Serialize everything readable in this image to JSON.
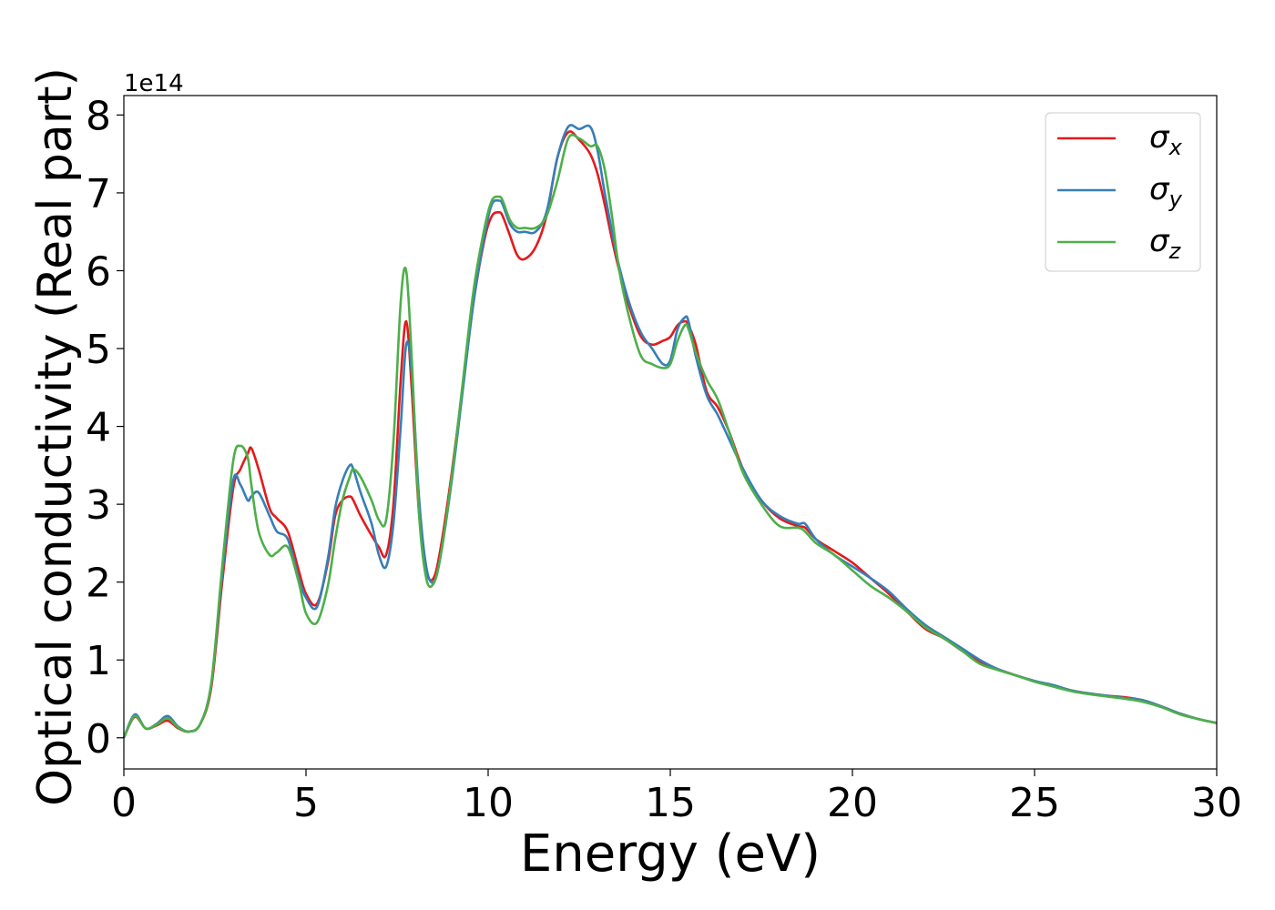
{
  "chart_data": {
    "type": "line",
    "xlabel": "Energy (eV)",
    "ylabel": "Optical conductivity (Real part)",
    "y_offset_label": "1e14",
    "xlim": [
      0,
      30
    ],
    "ylim": [
      -0.4,
      8.25
    ],
    "xticks": [
      0,
      5,
      10,
      15,
      20,
      25,
      30
    ],
    "yticks": [
      0,
      1,
      2,
      3,
      4,
      5,
      6,
      7,
      8
    ],
    "grid": false,
    "legend_position": "top-right",
    "x": [
      0,
      0.3,
      0.6,
      0.9,
      1.2,
      1.5,
      1.8,
      2.1,
      2.4,
      2.7,
      3.0,
      3.2,
      3.4,
      3.5,
      3.7,
      4.0,
      4.2,
      4.5,
      4.8,
      5.0,
      5.3,
      5.6,
      5.8,
      6.0,
      6.2,
      6.3,
      6.5,
      6.8,
      7.0,
      7.2,
      7.4,
      7.6,
      7.75,
      7.9,
      8.1,
      8.3,
      8.5,
      8.7,
      9.0,
      9.3,
      9.6,
      9.9,
      10.1,
      10.3,
      10.4,
      10.6,
      10.8,
      11.0,
      11.3,
      11.6,
      11.9,
      12.2,
      12.5,
      12.8,
      13.0,
      13.2,
      13.4,
      13.6,
      13.9,
      14.2,
      14.5,
      14.8,
      15.0,
      15.2,
      15.4,
      15.5,
      15.7,
      16.0,
      16.3,
      16.6,
      17.0,
      17.5,
      18.0,
      18.5,
      18.7,
      19.0,
      19.5,
      20.0,
      20.5,
      21.0,
      21.5,
      22.0,
      22.5,
      23.0,
      23.5,
      24.0,
      24.5,
      25.0,
      25.5,
      26.0,
      26.5,
      27.0,
      27.5,
      28.0,
      28.5,
      29.0,
      29.5,
      30.0
    ],
    "series": [
      {
        "name": "σ_x",
        "label_base": "σ",
        "label_sub": "x",
        "color": "#e41a1c",
        "values": [
          0,
          0.27,
          0.12,
          0.16,
          0.22,
          0.12,
          0.08,
          0.18,
          0.65,
          2.0,
          3.2,
          3.45,
          3.65,
          3.72,
          3.45,
          2.95,
          2.82,
          2.65,
          2.15,
          1.85,
          1.72,
          2.25,
          2.85,
          3.05,
          3.1,
          3.05,
          2.85,
          2.6,
          2.45,
          2.35,
          3.0,
          4.6,
          5.35,
          4.5,
          2.9,
          2.15,
          2.05,
          2.45,
          3.4,
          4.5,
          5.6,
          6.4,
          6.7,
          6.75,
          6.7,
          6.45,
          6.2,
          6.15,
          6.3,
          6.7,
          7.45,
          7.78,
          7.68,
          7.5,
          7.25,
          6.85,
          6.4,
          6.0,
          5.5,
          5.15,
          5.05,
          5.1,
          5.15,
          5.3,
          5.35,
          5.3,
          5.05,
          4.45,
          4.25,
          3.95,
          3.45,
          3.05,
          2.82,
          2.72,
          2.7,
          2.55,
          2.4,
          2.25,
          2.05,
          1.85,
          1.62,
          1.4,
          1.28,
          1.12,
          0.98,
          0.88,
          0.8,
          0.73,
          0.67,
          0.61,
          0.57,
          0.54,
          0.52,
          0.48,
          0.4,
          0.31,
          0.24,
          0.19
        ]
      },
      {
        "name": "σ_y",
        "label_base": "σ",
        "label_sub": "y",
        "color": "#377eb8",
        "values": [
          0,
          0.3,
          0.12,
          0.18,
          0.28,
          0.14,
          0.08,
          0.18,
          0.7,
          2.1,
          3.3,
          3.25,
          3.05,
          3.1,
          3.15,
          2.85,
          2.65,
          2.55,
          2.05,
          1.8,
          1.68,
          2.3,
          2.95,
          3.3,
          3.5,
          3.45,
          3.15,
          2.75,
          2.35,
          2.2,
          2.75,
          4.0,
          5.05,
          4.7,
          3.1,
          2.2,
          2.0,
          2.35,
          3.3,
          4.45,
          5.6,
          6.45,
          6.85,
          6.9,
          6.85,
          6.6,
          6.5,
          6.5,
          6.5,
          6.75,
          7.45,
          7.85,
          7.82,
          7.85,
          7.55,
          7.0,
          6.5,
          6.05,
          5.55,
          5.2,
          5.0,
          4.8,
          4.85,
          5.25,
          5.4,
          5.35,
          4.9,
          4.4,
          4.15,
          3.85,
          3.45,
          3.05,
          2.85,
          2.75,
          2.75,
          2.55,
          2.35,
          2.2,
          2.05,
          1.88,
          1.65,
          1.45,
          1.3,
          1.15,
          1.0,
          0.88,
          0.8,
          0.73,
          0.68,
          0.61,
          0.57,
          0.54,
          0.51,
          0.48,
          0.4,
          0.31,
          0.24,
          0.19
        ]
      },
      {
        "name": "σ_z",
        "label_base": "σ",
        "label_sub": "z",
        "color": "#4daf4a",
        "values": [
          0,
          0.28,
          0.12,
          0.17,
          0.25,
          0.13,
          0.08,
          0.18,
          0.7,
          2.2,
          3.55,
          3.75,
          3.6,
          3.25,
          2.65,
          2.35,
          2.38,
          2.45,
          2.0,
          1.6,
          1.48,
          1.95,
          2.55,
          3.05,
          3.35,
          3.45,
          3.35,
          3.05,
          2.8,
          2.8,
          3.8,
          5.6,
          6.0,
          4.9,
          2.9,
          2.05,
          1.98,
          2.35,
          3.35,
          4.55,
          5.75,
          6.55,
          6.9,
          6.95,
          6.9,
          6.65,
          6.55,
          6.55,
          6.55,
          6.7,
          7.15,
          7.7,
          7.7,
          7.6,
          7.6,
          7.3,
          6.7,
          6.0,
          5.35,
          4.9,
          4.8,
          4.75,
          4.8,
          5.1,
          5.3,
          5.25,
          4.95,
          4.6,
          4.35,
          3.95,
          3.4,
          3.0,
          2.72,
          2.7,
          2.65,
          2.5,
          2.35,
          2.15,
          1.95,
          1.8,
          1.62,
          1.42,
          1.28,
          1.12,
          0.95,
          0.87,
          0.8,
          0.72,
          0.66,
          0.6,
          0.56,
          0.53,
          0.5,
          0.46,
          0.39,
          0.3,
          0.24,
          0.19
        ]
      }
    ]
  }
}
